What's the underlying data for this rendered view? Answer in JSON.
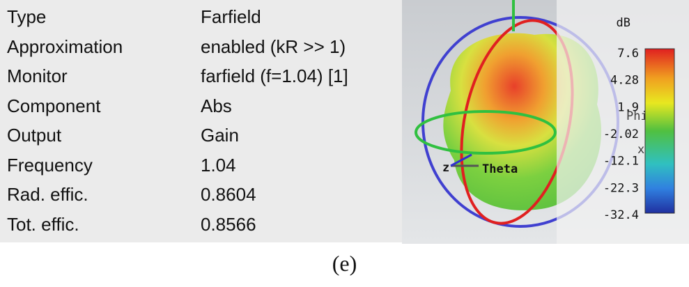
{
  "properties": [
    {
      "key": "Type",
      "value": "Farfield"
    },
    {
      "key": "Approximation",
      "value": "enabled (kR >> 1)"
    },
    {
      "key": "Monitor",
      "value": "farfield (f=1.04) [1]"
    },
    {
      "key": "Component",
      "value": "Abs"
    },
    {
      "key": "Output",
      "value": "Gain"
    },
    {
      "key": "Frequency",
      "value": "1.04"
    },
    {
      "key": "Rad. effic.",
      "value": "0.8604"
    },
    {
      "key": "Tot. effic.",
      "value": "0.8566"
    }
  ],
  "plot": {
    "axis_labels": [
      "Theta",
      "z",
      "Phi",
      "x"
    ]
  },
  "colorbar": {
    "unit": "dB",
    "labels": [
      "7.6",
      "4.28",
      "1.9",
      "-2.02",
      "-12.1",
      "-22.3",
      "-32.4"
    ]
  },
  "caption": "(e)"
}
